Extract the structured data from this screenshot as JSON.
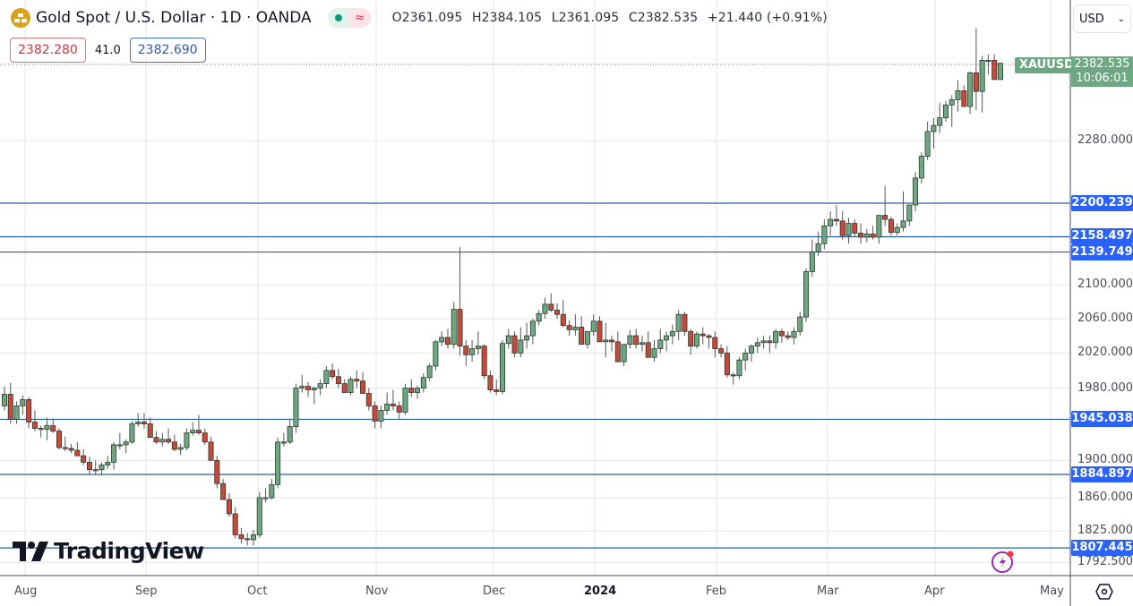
{
  "header": {
    "symbol_title": "Gold Spot / U.S. Dollar · 1D · OANDA",
    "market_status_icons": [
      "market-open-dot-icon",
      "delayed-data-icon"
    ],
    "ohlc": {
      "open": "O2361.095",
      "high": "H2384.105",
      "low": "L2361.095",
      "close": "C2382.535",
      "change": "+21.440 (+0.91%)"
    },
    "sell_price": "2382.280",
    "spread": "41.0",
    "buy_price": "2382.690"
  },
  "currency_selector": {
    "value": "USD"
  },
  "last_price": {
    "symbol": "XAUUSD",
    "price": "2382.535",
    "countdown": "10:06:01",
    "color": "#6ea882"
  },
  "price_axis": {
    "labels": [
      "2280.000",
      "2100.000",
      "2060.000",
      "2020.000",
      "1980.000",
      "1900.000",
      "1860.000",
      "1825.000",
      "1792.500"
    ]
  },
  "horizontal_levels": [
    {
      "label": "2200.239",
      "value": 2200.239
    },
    {
      "label": "2158.497",
      "value": 2158.497
    },
    {
      "label": "2139.749",
      "value": 2139.749
    },
    {
      "label": "1945.038",
      "value": 1945.038
    },
    {
      "label": "1884.897",
      "value": 1884.897
    },
    {
      "label": "1807.445",
      "value": 1807.445
    }
  ],
  "time_axis": {
    "labels": [
      {
        "text": "Aug",
        "x": 16
      },
      {
        "text": "Sep",
        "x": 151
      },
      {
        "text": "Oct",
        "x": 276
      },
      {
        "text": "Nov",
        "x": 408
      },
      {
        "text": "Dec",
        "x": 539
      },
      {
        "text": "2024",
        "x": 652,
        "year": true
      },
      {
        "text": "Feb",
        "x": 788
      },
      {
        "text": "Mar",
        "x": 912
      },
      {
        "text": "Apr",
        "x": 1032
      },
      {
        "text": "May",
        "x": 1161
      }
    ]
  },
  "branding": {
    "logo_text": "TradingView"
  },
  "colors": {
    "up": "#6ea882",
    "down": "#c8483a",
    "level_line": "#2b5ea0",
    "level_tag": "#2962ff",
    "grid": "#e6e6e6"
  },
  "chart_data": {
    "type": "candlestick",
    "title": "Gold Spot / U.S. Dollar · 1D · OANDA",
    "symbol": "XAUUSD",
    "interval": "1D",
    "scale": "log",
    "ylim": [
      1785,
      2430
    ],
    "x_range": [
      "2023-07-28",
      "2024-04-19"
    ],
    "last": {
      "open": 2361.095,
      "high": 2384.105,
      "low": 2361.095,
      "close": 2382.535,
      "change": 21.44,
      "change_pct": 0.91
    },
    "support_resistance_levels": [
      2200.239,
      2158.497,
      2139.749,
      1945.038,
      1884.897,
      1807.445
    ],
    "candles_px_note": "approximate OHLC read from chart, one candle per trading day",
    "candles": [
      [
        1960,
        1982,
        1955,
        1973
      ],
      [
        1973,
        1986,
        1940,
        1945
      ],
      [
        1945,
        1965,
        1940,
        1960
      ],
      [
        1960,
        1972,
        1950,
        1967
      ],
      [
        1967,
        1970,
        1935,
        1942
      ],
      [
        1942,
        1955,
        1932,
        1935
      ],
      [
        1935,
        1938,
        1925,
        1934
      ],
      [
        1934,
        1947,
        1922,
        1938
      ],
      [
        1938,
        1946,
        1930,
        1932
      ],
      [
        1932,
        1935,
        1912,
        1914
      ],
      [
        1914,
        1926,
        1910,
        1913
      ],
      [
        1913,
        1918,
        1908,
        1911
      ],
      [
        1911,
        1920,
        1907,
        1905
      ],
      [
        1905,
        1912,
        1895,
        1898
      ],
      [
        1898,
        1904,
        1885,
        1890
      ],
      [
        1890,
        1900,
        1884,
        1890
      ],
      [
        1890,
        1898,
        1884,
        1895
      ],
      [
        1895,
        1905,
        1891,
        1898
      ],
      [
        1898,
        1920,
        1890,
        1917
      ],
      [
        1917,
        1930,
        1912,
        1917
      ],
      [
        1917,
        1923,
        1908,
        1920
      ],
      [
        1920,
        1943,
        1918,
        1940
      ],
      [
        1940,
        1952,
        1937,
        1942
      ],
      [
        1942,
        1952,
        1935,
        1940
      ],
      [
        1940,
        1947,
        1926,
        1925
      ],
      [
        1925,
        1932,
        1918,
        1920
      ],
      [
        1920,
        1930,
        1915,
        1923
      ],
      [
        1923,
        1935,
        1918,
        1920
      ],
      [
        1920,
        1928,
        1910,
        1912
      ],
      [
        1912,
        1918,
        1906,
        1914
      ],
      [
        1914,
        1935,
        1911,
        1930
      ],
      [
        1930,
        1942,
        1927,
        1933
      ],
      [
        1933,
        1950,
        1928,
        1930
      ],
      [
        1930,
        1935,
        1917,
        1920
      ],
      [
        1920,
        1926,
        1900,
        1900
      ],
      [
        1900,
        1905,
        1870,
        1875
      ],
      [
        1875,
        1880,
        1860,
        1858
      ],
      [
        1858,
        1865,
        1840,
        1843
      ],
      [
        1843,
        1850,
        1817,
        1821
      ],
      [
        1821,
        1828,
        1812,
        1817
      ],
      [
        1817,
        1823,
        1810,
        1816
      ],
      [
        1816,
        1826,
        1810,
        1821
      ],
      [
        1821,
        1866,
        1818,
        1860
      ],
      [
        1860,
        1870,
        1855,
        1860
      ],
      [
        1860,
        1880,
        1858,
        1874
      ],
      [
        1874,
        1925,
        1870,
        1920
      ],
      [
        1920,
        1930,
        1915,
        1920
      ],
      [
        1920,
        1945,
        1918,
        1937
      ],
      [
        1937,
        1985,
        1930,
        1980
      ],
      [
        1980,
        1995,
        1975,
        1982
      ],
      [
        1982,
        1987,
        1970,
        1978
      ],
      [
        1978,
        1982,
        1962,
        1980
      ],
      [
        1980,
        1990,
        1972,
        1985
      ],
      [
        1985,
        2005,
        1980,
        2000
      ],
      [
        2000,
        2008,
        1990,
        1993
      ],
      [
        1993,
        2002,
        1980,
        1985
      ],
      [
        1985,
        1990,
        1975,
        1975
      ],
      [
        1975,
        1993,
        1972,
        1990
      ],
      [
        1990,
        2000,
        1980,
        1988
      ],
      [
        1988,
        1998,
        1975,
        1974
      ],
      [
        1974,
        1980,
        1955,
        1960
      ],
      [
        1960,
        1965,
        1935,
        1943
      ],
      [
        1943,
        1960,
        1935,
        1955
      ],
      [
        1955,
        1975,
        1950,
        1962
      ],
      [
        1962,
        1978,
        1955,
        1960
      ],
      [
        1960,
        1965,
        1945,
        1953
      ],
      [
        1953,
        1985,
        1950,
        1980
      ],
      [
        1980,
        1990,
        1970,
        1975
      ],
      [
        1975,
        1983,
        1968,
        1980
      ],
      [
        1980,
        1997,
        1975,
        1992
      ],
      [
        1992,
        2008,
        1988,
        2005
      ],
      [
        2005,
        2035,
        2000,
        2033
      ],
      [
        2033,
        2045,
        2028,
        2038
      ],
      [
        2038,
        2048,
        2025,
        2030
      ],
      [
        2030,
        2080,
        2025,
        2071
      ],
      [
        2071,
        2146,
        2017,
        2028
      ],
      [
        2028,
        2035,
        2005,
        2018
      ],
      [
        2018,
        2035,
        2010,
        2025
      ],
      [
        2025,
        2045,
        2018,
        2028
      ],
      [
        2028,
        2030,
        1990,
        1994
      ],
      [
        1994,
        2000,
        1975,
        1978
      ],
      [
        1978,
        1990,
        1972,
        1976
      ],
      [
        1976,
        2035,
        1973,
        2031
      ],
      [
        2031,
        2048,
        2025,
        2040
      ],
      [
        2040,
        2045,
        2015,
        2020
      ],
      [
        2020,
        2050,
        2015,
        2035
      ],
      [
        2035,
        2055,
        2025,
        2040
      ],
      [
        2040,
        2060,
        2030,
        2057
      ],
      [
        2057,
        2070,
        2052,
        2066
      ],
      [
        2066,
        2085,
        2060,
        2077
      ],
      [
        2077,
        2090,
        2068,
        2070
      ],
      [
        2070,
        2078,
        2060,
        2065
      ],
      [
        2065,
        2082,
        2050,
        2052
      ],
      [
        2052,
        2058,
        2040,
        2047
      ],
      [
        2047,
        2065,
        2040,
        2050
      ],
      [
        2050,
        2063,
        2038,
        2030
      ],
      [
        2030,
        2045,
        2025,
        2045
      ],
      [
        2045,
        2065,
        2040,
        2057
      ],
      [
        2057,
        2063,
        2040,
        2033
      ],
      [
        2033,
        2055,
        2015,
        2035
      ],
      [
        2035,
        2040,
        2022,
        2033
      ],
      [
        2033,
        2045,
        2015,
        2010
      ],
      [
        2010,
        2030,
        2005,
        2030
      ],
      [
        2030,
        2047,
        2025,
        2040
      ],
      [
        2040,
        2048,
        2025,
        2030
      ],
      [
        2030,
        2040,
        2022,
        2032
      ],
      [
        2032,
        2045,
        2015,
        2015
      ],
      [
        2015,
        2035,
        2010,
        2025
      ],
      [
        2025,
        2048,
        2020,
        2035
      ],
      [
        2035,
        2045,
        2022,
        2040
      ],
      [
        2040,
        2053,
        2030,
        2045
      ],
      [
        2045,
        2070,
        2035,
        2065
      ],
      [
        2065,
        2068,
        2040,
        2045
      ],
      [
        2045,
        2048,
        2018,
        2028
      ],
      [
        2028,
        2045,
        2025,
        2042
      ],
      [
        2042,
        2050,
        2030,
        2040
      ],
      [
        2040,
        2042,
        2025,
        2038
      ],
      [
        2038,
        2045,
        2015,
        2025
      ],
      [
        2025,
        2030,
        2015,
        2020
      ],
      [
        2020,
        2028,
        1992,
        1995
      ],
      [
        1995,
        1998,
        1984,
        1994
      ],
      [
        1994,
        2015,
        1990,
        2012
      ],
      [
        2012,
        2025,
        2000,
        2020
      ],
      [
        2020,
        2030,
        2010,
        2028
      ],
      [
        2028,
        2038,
        2020,
        2032
      ],
      [
        2032,
        2040,
        2025,
        2034
      ],
      [
        2034,
        2040,
        2020,
        2032
      ],
      [
        2032,
        2048,
        2025,
        2045
      ],
      [
        2045,
        2048,
        2032,
        2040
      ],
      [
        2040,
        2045,
        2035,
        2038
      ],
      [
        2038,
        2050,
        2030,
        2045
      ],
      [
        2045,
        2068,
        2040,
        2062
      ],
      [
        2062,
        2120,
        2056,
        2116
      ],
      [
        2116,
        2155,
        2110,
        2140
      ],
      [
        2140,
        2165,
        2135,
        2150
      ],
      [
        2150,
        2180,
        2143,
        2172
      ],
      [
        2172,
        2190,
        2160,
        2180
      ],
      [
        2180,
        2198,
        2172,
        2178
      ],
      [
        2178,
        2190,
        2155,
        2160
      ],
      [
        2160,
        2182,
        2150,
        2175
      ],
      [
        2175,
        2180,
        2158,
        2163
      ],
      [
        2163,
        2175,
        2150,
        2158
      ],
      [
        2158,
        2168,
        2152,
        2162
      ],
      [
        2162,
        2172,
        2155,
        2158
      ],
      [
        2158,
        2180,
        2150,
        2185
      ],
      [
        2185,
        2222,
        2172,
        2180
      ],
      [
        2180,
        2183,
        2160,
        2164
      ],
      [
        2164,
        2175,
        2160,
        2170
      ],
      [
        2170,
        2215,
        2165,
        2178
      ],
      [
        2178,
        2190,
        2172,
        2198
      ],
      [
        2198,
        2240,
        2190,
        2232
      ],
      [
        2232,
        2265,
        2225,
        2260
      ],
      [
        2260,
        2305,
        2255,
        2292
      ],
      [
        2292,
        2310,
        2270,
        2300
      ],
      [
        2300,
        2330,
        2290,
        2310
      ],
      [
        2310,
        2332,
        2305,
        2327
      ],
      [
        2327,
        2340,
        2298,
        2334
      ],
      [
        2334,
        2360,
        2318,
        2346
      ],
      [
        2346,
        2353,
        2325,
        2325
      ],
      [
        2325,
        2372,
        2315,
        2370
      ],
      [
        2370,
        2431,
        2320,
        2345
      ],
      [
        2345,
        2393,
        2317,
        2387
      ],
      [
        2387,
        2395,
        2368,
        2387
      ],
      [
        2387,
        2395,
        2370,
        2361
      ],
      [
        2361,
        2384,
        2361,
        2383
      ]
    ]
  }
}
